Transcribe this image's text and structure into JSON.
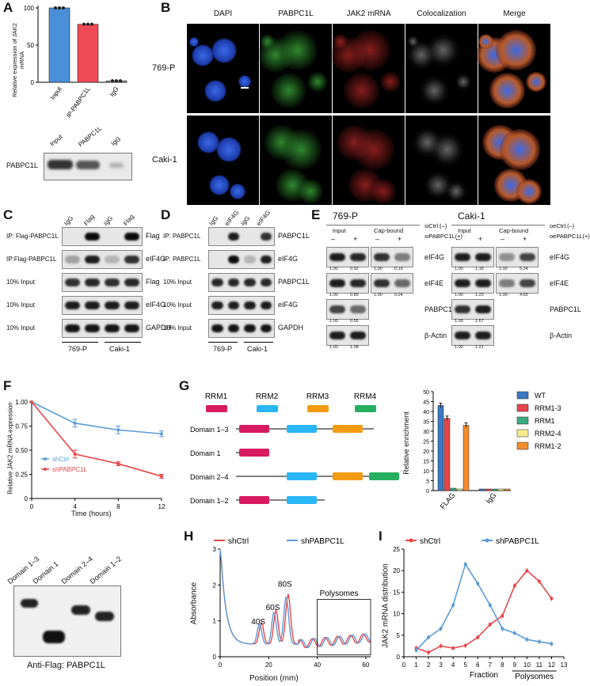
{
  "panels": {
    "A": {
      "label": "A",
      "ylabel": "Relative expression of JAK2 mRNA",
      "blot_label": "PABPC1L",
      "blot_lanes": [
        "Input",
        "PABPC1L",
        "IgG"
      ],
      "chart_data": {
        "type": "bar",
        "categories": [
          "Input",
          "IP-PABPC1L",
          "IgG"
        ],
        "values": [
          100,
          78,
          2
        ],
        "colors": [
          "#4a90d9",
          "#ef4b57",
          "#999999"
        ],
        "ylim": [
          0,
          100
        ],
        "yticks": [
          "0",
          "50",
          "100"
        ]
      }
    },
    "B": {
      "label": "B",
      "columns": [
        "DAPI",
        "PABPC1L",
        "JAK2 mRNA",
        "Colocalization",
        "Merge"
      ],
      "rows": [
        "769-P",
        "Caki-1"
      ]
    },
    "C": {
      "label": "C",
      "lanes": [
        "IgG",
        "Flag",
        "IgG",
        "Flag"
      ],
      "rows": [
        {
          "left": "IP: Flag-PABPC1L",
          "right": "Flag"
        },
        {
          "left": "IP:Flag-PABPC1L",
          "right": "eIF4G"
        },
        {
          "left": "10% Input",
          "right": "Flag"
        },
        {
          "left": "10% Input",
          "right": "eIF4G"
        },
        {
          "left": "10% Input",
          "right": "GAPDH"
        }
      ],
      "cells": [
        "769-P",
        "Caki-1"
      ]
    },
    "D": {
      "label": "D",
      "lanes": [
        "IgG",
        "eIF4G",
        "IgG",
        "eIF4G"
      ],
      "rows": [
        {
          "left": "IP: PABPC1L",
          "right": "PABPC1L"
        },
        {
          "left": "IP: PABPC1L",
          "right": "eIF4G"
        },
        {
          "left": "10% Input",
          "right": "PABPC1L"
        },
        {
          "left": "10% Input",
          "right": "eIF4G"
        },
        {
          "left": "10% Input",
          "right": "GAPDH"
        }
      ],
      "cells": [
        "769-P",
        "Caki-1"
      ]
    },
    "E": {
      "label": "E",
      "left": {
        "title": "769-P",
        "cond1": "siCtrl:(–)",
        "cond2": "siPABPC1L(+)",
        "g1": "Input",
        "g2": "Cap-bound",
        "signs": [
          "–",
          "+",
          "–",
          "+"
        ],
        "rows": [
          {
            "name": "eIF4G",
            "vals": [
              "1.00",
              "0.92",
              "1.00",
              "0.19"
            ]
          },
          {
            "name": "eIF4E",
            "vals": [
              "1.00",
              "0.89",
              "1.00",
              "0.24"
            ]
          },
          {
            "name": "PABPC1L",
            "vals": [
              "1.00",
              "0.55"
            ]
          },
          {
            "name": "β-Actin",
            "vals": [
              "1.00",
              "1.08"
            ]
          }
        ]
      },
      "right": {
        "title": "Caki-1",
        "cond1": "oeCtrl:(–)",
        "cond2": "oePABPC1L(+)",
        "g1": "Input",
        "g2": "Cap-bound",
        "signs": [
          "–",
          "+",
          "–",
          "+"
        ],
        "rows": [
          {
            "name": "eIF4G",
            "vals": [
              "1.00",
              "1.18",
              "1.00",
              "5.24"
            ]
          },
          {
            "name": "eIF4E",
            "vals": [
              "1.00",
              "1.23",
              "1.00",
              "4.65"
            ]
          },
          {
            "name": "PABPC1L",
            "vals": [
              "1.00",
              "1.67"
            ]
          },
          {
            "name": "β-Actin",
            "vals": [
              "1.00",
              "1.21"
            ]
          }
        ]
      }
    },
    "F": {
      "label": "F",
      "ylabel": "Relative JAK2 mRNA expression",
      "xlabel": "Time (hours)",
      "chart_data": {
        "type": "line",
        "x": [
          0,
          4,
          8,
          12
        ],
        "series": [
          {
            "name": "shCtrl",
            "values": [
              1.0,
              0.78,
              0.71,
              0.67
            ],
            "err": [
              0.0,
              0.04,
              0.04,
              0.03
            ],
            "color": "#5b9bd5"
          },
          {
            "name": "shPABPC1L",
            "values": [
              1.0,
              0.46,
              0.36,
              0.23
            ],
            "err": [
              0.0,
              0.04,
              0.02,
              0.02
            ],
            "color": "#e8464a"
          }
        ],
        "xlim": [
          0,
          12
        ],
        "ylim": [
          0,
          1.0
        ],
        "xticks": [
          "0",
          "4",
          "8",
          "12"
        ],
        "yticks": [
          "0",
          "0.25",
          "0.50",
          "0.75",
          "1.00"
        ]
      }
    },
    "G": {
      "label": "G",
      "domain_titles": [
        "RRM1",
        "RRM2",
        "RRM3",
        "RRM4"
      ],
      "constructs": [
        "Domain 1–3",
        "Domain 1",
        "Domain 2–4",
        "Domain 1–2"
      ],
      "ylabel": "Relative enrichment",
      "blot_lanes": [
        "Domain 1–3",
        "Domain 1",
        "Domain 2–4",
        "Domain 1–2"
      ],
      "blot_caption": "Anti-Flag: PABPC1L",
      "chart_data": {
        "type": "bar",
        "categories": [
          "FLAG",
          "IgG"
        ],
        "series": [
          {
            "name": "WT",
            "values": [
              43,
              0.8
            ],
            "color": "#3a78c2"
          },
          {
            "name": "RRM1-3",
            "values": [
              36.5,
              0.8
            ],
            "color": "#e8464a"
          },
          {
            "name": "RRM1",
            "values": [
              1.2,
              0.8
            ],
            "color": "#3aaa80"
          },
          {
            "name": "RRM2-4",
            "values": [
              0.8,
              0.8
            ],
            "color": "#f2ec8c"
          },
          {
            "name": "RRM1-2",
            "values": [
              33,
              0.8
            ],
            "color": "#f28c2e"
          }
        ],
        "ylim": [
          0,
          50
        ],
        "yticks": [
          "0",
          "5",
          "10",
          "15",
          "20",
          "25",
          "30",
          "35",
          "40",
          "45",
          "50"
        ]
      }
    },
    "H": {
      "label": "H",
      "ylabel": "Absorbance",
      "xlabel": "Position (mm)",
      "peaks": [
        "40S",
        "60S",
        "80S"
      ],
      "box_label": "Polysomes",
      "chart_data": {
        "type": "line",
        "series": [
          {
            "name": "shCtrl",
            "color": "#e8464a"
          },
          {
            "name": "shPABPC1L",
            "color": "#5b9bd5"
          }
        ],
        "xlim": [
          0,
          62
        ],
        "ylim": [
          0,
          3
        ],
        "xticks": [
          "0",
          "20",
          "40",
          "60"
        ],
        "yticks": [
          "0",
          "1",
          "2",
          "3"
        ]
      }
    },
    "I": {
      "label": "I",
      "ylabel": "JAK2 mRNA distribution",
      "xlabel1": "Fraction",
      "xlabel2": "Polysomes",
      "chart_data": {
        "type": "line",
        "x": [
          1,
          2,
          3,
          4,
          5,
          6,
          7,
          8,
          9,
          10,
          11,
          12
        ],
        "series": [
          {
            "name": "shCtrl",
            "values": [
              2,
              1,
              2.5,
              2,
              2.6,
              4.5,
              7.5,
              9.5,
              16.5,
              20,
              17.5,
              13.5
            ],
            "color": "#e8464a"
          },
          {
            "name": "shPABPC1L",
            "values": [
              1.5,
              4.5,
              6.5,
              12,
              21.5,
              17,
              12,
              6.5,
              5.5,
              4,
              3.5,
              3
            ],
            "color": "#5b9bd5"
          }
        ],
        "xlim": [
          0,
          13
        ],
        "ylim": [
          0,
          25
        ],
        "xticks": [
          "0",
          "1",
          "2",
          "3",
          "4",
          "5",
          "6",
          "7",
          "8",
          "9",
          "10",
          "11",
          "12",
          "13"
        ],
        "yticks": [
          "0",
          "5",
          "10",
          "15",
          "20",
          "25"
        ]
      }
    }
  }
}
